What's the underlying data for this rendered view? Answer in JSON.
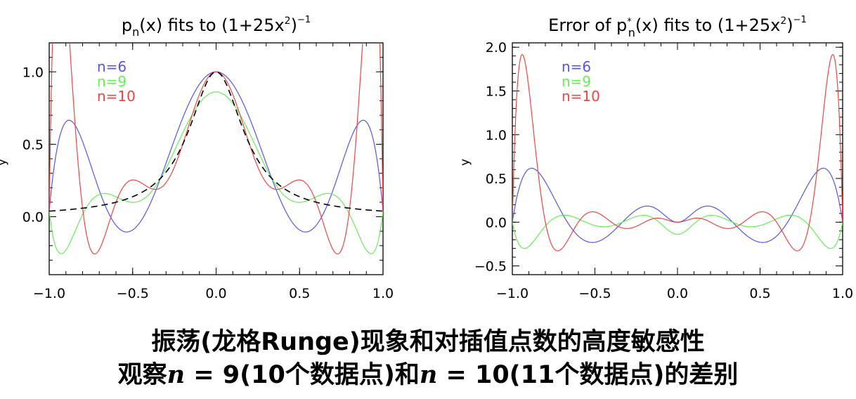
{
  "chart_data": [
    {
      "type": "line",
      "title": {
        "base": "p",
        "sub": "n",
        "mid": "(x) fits to (1+25x",
        "sup2": "2",
        "close": ")",
        "supExp": "−1"
      },
      "ylabel": "y",
      "xlim": [
        -1,
        1
      ],
      "ylim": [
        -0.4,
        1.2
      ],
      "xticks": [
        "−1.0",
        "−0.5",
        "0.0",
        "0.5",
        "1.0"
      ],
      "yticks": [
        "0.0",
        "0.5",
        "1.0"
      ],
      "series": [
        {
          "name": "n=6",
          "color": "#5555ee",
          "style": "solid",
          "n": 6
        },
        {
          "name": "n=9",
          "color": "#66ee55",
          "style": "solid",
          "n": 9
        },
        {
          "name": "n=10",
          "color": "#ee4444",
          "style": "solid",
          "n": 10
        },
        {
          "name": "",
          "color": "#000000",
          "style": "dashed",
          "n": 0
        }
      ],
      "legend": "top-left"
    },
    {
      "type": "line",
      "title": {
        "base": "Error of p",
        "sub": "n",
        "sup": "*",
        "mid": "(x) fits to (1+25x",
        "sup2": "2",
        "close": ")",
        "supExp": "−1"
      },
      "ylabel": "y",
      "xlim": [
        -1,
        1
      ],
      "ylim": [
        -0.6,
        2.05
      ],
      "xticks": [
        "−1.0",
        "−0.5",
        "0.0",
        "0.5",
        "1.0"
      ],
      "yticks": [
        "−0.5",
        "0.0",
        "0.5",
        "1.0",
        "1.5",
        "2.0"
      ],
      "series": [
        {
          "name": "n=6",
          "color": "#5555ee",
          "style": "solid",
          "n": 6
        },
        {
          "name": "n=9",
          "color": "#66ee55",
          "style": "solid",
          "n": 9
        },
        {
          "name": "n=10",
          "color": "#ee4444",
          "style": "solid",
          "n": 10
        }
      ],
      "legend": "top-left"
    }
  ],
  "caption": {
    "line1": "振荡(龙格Runge)现象和对插值点数的高度敏感性",
    "line2_a": "观察",
    "line2_var": "n",
    "line2_b": " = 9(10个数据点)和",
    "line2_c": " = 10(11个数据点)的差别"
  }
}
